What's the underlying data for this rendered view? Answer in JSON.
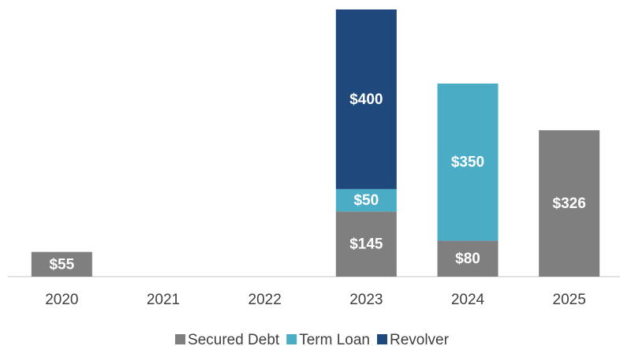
{
  "chart_data": {
    "type": "stacked-bar",
    "categories": [
      "2020",
      "2021",
      "2022",
      "2023",
      "2024",
      "2025"
    ],
    "series": [
      {
        "name": "Secured Debt",
        "color": "#7f7f7f",
        "values": [
          55,
          null,
          null,
          145,
          80,
          326
        ],
        "value_labels": [
          "$55",
          null,
          null,
          "$145",
          "$80",
          "$326"
        ]
      },
      {
        "name": "Term Loan",
        "color": "#4bacc6",
        "values": [
          null,
          null,
          null,
          50,
          350,
          null
        ],
        "value_labels": [
          null,
          null,
          null,
          "$50",
          "$350",
          null
        ]
      },
      {
        "name": "Revolver",
        "color": "#1f497d",
        "values": [
          null,
          null,
          null,
          400,
          null,
          null
        ],
        "value_labels": [
          null,
          null,
          null,
          "$400",
          null,
          null
        ]
      }
    ],
    "legend": "bottom"
  }
}
